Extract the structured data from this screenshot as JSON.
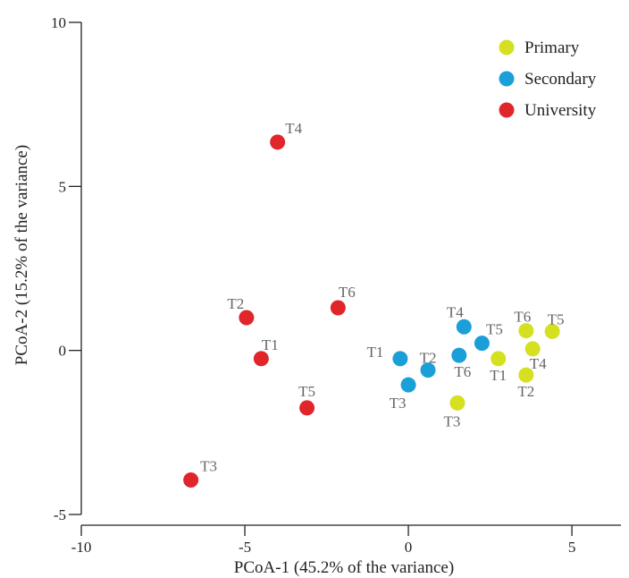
{
  "chart_data": {
    "type": "scatter",
    "xlabel": "PCoA-1 (45.2% of the variance)",
    "ylabel": "PCoA-2 (15.2% of the variance)",
    "xlim": [
      -10,
      6.5
    ],
    "ylim": [
      -5,
      10
    ],
    "xticks": [
      -10,
      -5,
      0,
      5
    ],
    "yticks": [
      -5,
      0,
      5,
      10
    ],
    "xtick_labels": [
      "-10",
      "-5",
      "0",
      "5"
    ],
    "ytick_labels": [
      "-5",
      "0",
      "5",
      "10"
    ],
    "legend_position": "top-right",
    "series": [
      {
        "name": "Primary",
        "color": "#d4e020",
        "points": [
          {
            "label": "T1",
            "x": 2.75,
            "y": -0.25
          },
          {
            "label": "T2",
            "x": 3.6,
            "y": -0.75
          },
          {
            "label": "T3",
            "x": 1.5,
            "y": -1.6
          },
          {
            "label": "T4",
            "x": 3.8,
            "y": 0.05
          },
          {
            "label": "T5",
            "x": 4.4,
            "y": 0.58
          },
          {
            "label": "T6",
            "x": 3.6,
            "y": 0.6
          }
        ]
      },
      {
        "name": "Secondary",
        "color": "#1b9fd8",
        "points": [
          {
            "label": "T1",
            "x": -0.25,
            "y": -0.25
          },
          {
            "label": "T2",
            "x": 0.6,
            "y": -0.6
          },
          {
            "label": "T3",
            "x": 0,
            "y": -1.05
          },
          {
            "label": "T4",
            "x": 1.7,
            "y": 0.72
          },
          {
            "label": "T5",
            "x": 2.25,
            "y": 0.22
          },
          {
            "label": "T6",
            "x": 1.55,
            "y": -0.15
          }
        ]
      },
      {
        "name": "University",
        "color": "#e0262b",
        "points": [
          {
            "label": "T1",
            "x": -4.5,
            "y": -0.25
          },
          {
            "label": "T2",
            "x": -4.95,
            "y": 1.0
          },
          {
            "label": "T3",
            "x": -6.65,
            "y": -3.95
          },
          {
            "label": "T4",
            "x": -4.0,
            "y": 6.35
          },
          {
            "label": "T5",
            "x": -3.1,
            "y": -1.75
          },
          {
            "label": "T6",
            "x": -2.15,
            "y": 1.3
          }
        ]
      }
    ]
  }
}
